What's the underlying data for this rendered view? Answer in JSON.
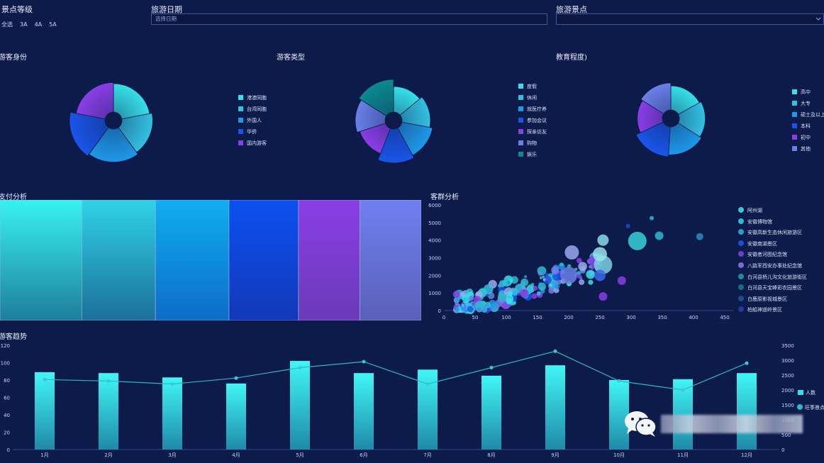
{
  "filters": {
    "level": {
      "label": "景点等级",
      "options": [
        "全选",
        "3A",
        "4A",
        "5A"
      ]
    },
    "date": {
      "label": "旅游日期",
      "placeholder": "选择日期"
    },
    "spot": {
      "label": "旅游景点",
      "value": ""
    }
  },
  "pie1": {
    "title": "游客身份",
    "legend": [
      "港澳同胞",
      "台湾同胞",
      "外国人",
      "华侨",
      "国内游客"
    ],
    "colors": [
      "#36e0e8",
      "#33c0e0",
      "#1e98e8",
      "#1a55e8",
      "#8a3ee6"
    ],
    "values": [
      22,
      18,
      20,
      18,
      22
    ]
  },
  "pie2": {
    "title": "游客类型",
    "legend": [
      "度假",
      "休闲",
      "就医疗养",
      "参加会议",
      "探亲访友",
      "购物",
      "娱乐"
    ],
    "colors": [
      "#36e0e8",
      "#33c0e0",
      "#1e98e8",
      "#1a55e8",
      "#8a3ee6",
      "#6b7fe8",
      "#0b8a8e"
    ],
    "values": [
      14,
      14,
      14,
      14,
      14,
      14,
      16
    ]
  },
  "pie3": {
    "title": "教育程度)",
    "legend": [
      "高中",
      "大专",
      "硕士及以上",
      "本科",
      "初中",
      "其他"
    ],
    "colors": [
      "#36e0e8",
      "#33c0e0",
      "#1e98e8",
      "#1a55e8",
      "#8a3ee6",
      "#6b7fe8"
    ],
    "values": [
      17,
      17,
      17,
      17,
      16,
      16
    ]
  },
  "payment": {
    "title": "支付分析",
    "segments": [
      {
        "value": 20,
        "top": "#38f2f2",
        "bottom": "#1e7e9c"
      },
      {
        "value": 18,
        "top": "#30d2e6",
        "bottom": "#1d6f9a"
      },
      {
        "value": 18,
        "top": "#10aef0",
        "bottom": "#0d6cc8"
      },
      {
        "value": 17,
        "top": "#0b50f0",
        "bottom": "#1338b8"
      },
      {
        "value": 15,
        "top": "#8a3ee6",
        "bottom": "#6a3ab8"
      },
      {
        "value": 15,
        "top": "#6f80f0",
        "bottom": "#5a5fb8"
      }
    ]
  },
  "scatter": {
    "title": "客群分析",
    "yTicks": [
      "6000",
      "5000",
      "4000",
      "3000",
      "2000",
      "1000",
      "0"
    ],
    "xTicks": [
      "0",
      "50",
      "100",
      "150",
      "200",
      "250",
      "300",
      "350",
      "400",
      "450"
    ],
    "legend": [
      "阿州湖",
      "安徽博物馆",
      "安徽高新生态休闲旅游区",
      "安徽南湖景区",
      "安徽者河图纪念馆",
      "八路军西安办事处纪念馆",
      "白河县桥儿沟文化旅游街区",
      "白河县天宝峰彩农园景区",
      "白鹿原影视城景区",
      "柏船神道岭景区"
    ],
    "colors": [
      "#36c8d8",
      "#2fb8d0",
      "#27a0c8",
      "#1a4fd8",
      "#6a3ed0",
      "#7a6ad8",
      "#1e8aa0",
      "#176a8a",
      "#1d4a90",
      "#1a3aa0"
    ]
  },
  "trend": {
    "title": "游客趋势",
    "months": [
      "1月",
      "2月",
      "3月",
      "4月",
      "5月",
      "6月",
      "7月",
      "8月",
      "9月",
      "10月",
      "11月",
      "12月"
    ],
    "bars": [
      89,
      88,
      83,
      76,
      102,
      88,
      92,
      85,
      97,
      80,
      81,
      88
    ],
    "line": [
      2350,
      2300,
      2200,
      2400,
      2750,
      2950,
      2200,
      2750,
      3300,
      2300,
      2000,
      2900
    ],
    "leftTicks": [
      "120",
      "100",
      "80",
      "60",
      "40",
      "20",
      "0"
    ],
    "rightTicks": [
      "3500",
      "3000",
      "2500",
      "2000",
      "1500",
      "1000",
      "500",
      "0"
    ],
    "legend": [
      "人数",
      "旺季景点"
    ]
  }
}
